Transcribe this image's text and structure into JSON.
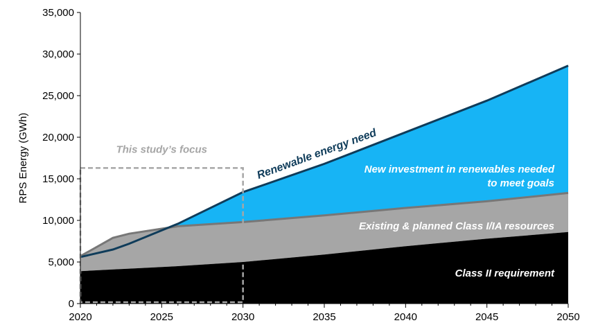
{
  "chart_data": {
    "type": "area",
    "title": "",
    "xlabel": "",
    "ylabel": "RPS Energy (GWh)",
    "xlim": [
      2020,
      2050
    ],
    "ylim": [
      0,
      35000
    ],
    "x_ticks": [
      "2020",
      "2025",
      "2030",
      "2035",
      "2040",
      "2045",
      "2050"
    ],
    "y_ticks": [
      "0",
      "5,000",
      "10,000",
      "15,000",
      "20,000",
      "25,000",
      "30,000",
      "35,000"
    ],
    "grid": false,
    "legend": "none",
    "x": [
      2020,
      2022,
      2023,
      2025,
      2026,
      2030,
      2035,
      2040,
      2045,
      2050
    ],
    "series": [
      {
        "name": "Class II requirement",
        "color": "#000000",
        "values": [
          3900,
          4100,
          4200,
          4400,
          4500,
          5000,
          5900,
          6900,
          7800,
          8600
        ]
      },
      {
        "name": "Existing & planned Class I/IA resources",
        "color": "#a6a6a6",
        "values": [
          5700,
          7900,
          8400,
          9000,
          9300,
          9800,
          10600,
          11500,
          12300,
          13300
        ]
      },
      {
        "name": "Renewable energy need",
        "color": "#1b9bd8",
        "values": [
          5600,
          6500,
          7200,
          8800,
          9600,
          13400,
          16800,
          20600,
          24400,
          28600
        ]
      }
    ],
    "line_color": "#0f3c5a",
    "new_investment_color": "#17b4f5",
    "focus_box": {
      "label": "This study’s focus",
      "x_range": [
        2020,
        2030
      ],
      "y_range": [
        0,
        16300
      ],
      "color": "#a6a6a6"
    },
    "annotations": {
      "renewable_need": "Renewable energy need",
      "new_investment_1": "New investment in renewables needed",
      "new_investment_2": "to meet goals",
      "existing": "Existing & planned Class I/IA resources",
      "class2": "Class II requirement"
    }
  }
}
